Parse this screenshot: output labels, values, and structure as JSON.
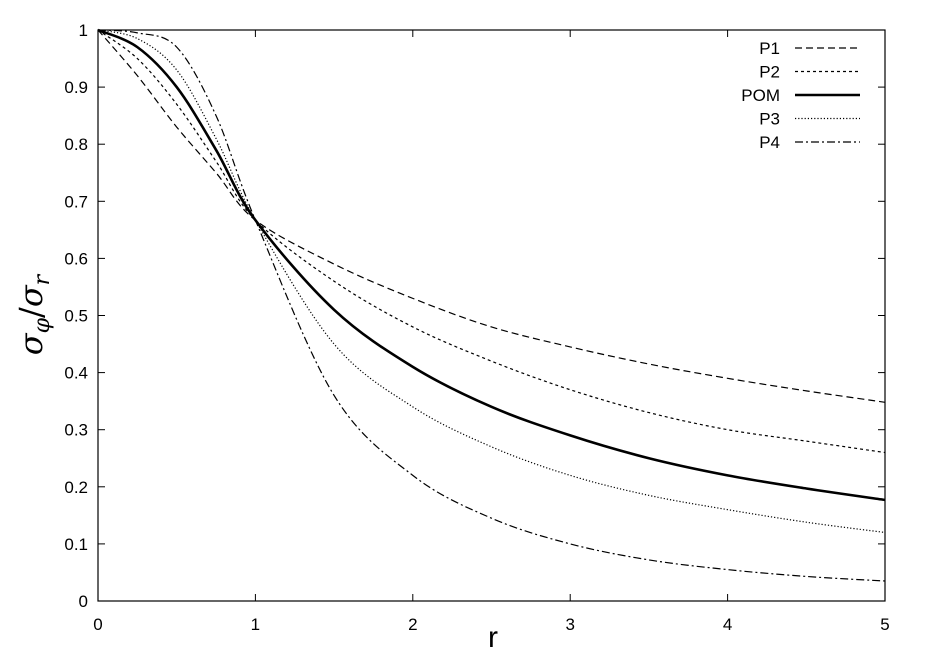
{
  "chart_data": {
    "type": "line",
    "xlabel": "r",
    "ylabel_main": "σ",
    "ylabel_sub1": "φ",
    "ylabel_slash": "/",
    "ylabel_sub2": "r",
    "xlim": [
      0,
      5
    ],
    "ylim": [
      0,
      1
    ],
    "x_ticks": [
      0,
      1,
      2,
      3,
      4,
      5
    ],
    "y_ticks": [
      0,
      0.1,
      0.2,
      0.3,
      0.4,
      0.5,
      0.6,
      0.7,
      0.8,
      0.9,
      1
    ],
    "grid": false,
    "legend_position": "top-right",
    "x": [
      0,
      0.25,
      0.5,
      0.75,
      1,
      1.5,
      2,
      2.5,
      3,
      3.5,
      4,
      4.5,
      5
    ],
    "series": [
      {
        "name": "P1",
        "dash": "dashed-long",
        "values": [
          1.0,
          0.92,
          0.83,
          0.75,
          0.667,
          0.59,
          0.53,
          0.48,
          0.445,
          0.415,
          0.39,
          0.368,
          0.348
        ]
      },
      {
        "name": "P2",
        "dash": "dashed-short",
        "values": [
          1.0,
          0.95,
          0.87,
          0.77,
          0.667,
          0.56,
          0.48,
          0.42,
          0.37,
          0.33,
          0.3,
          0.28,
          0.26
        ]
      },
      {
        "name": "POM",
        "dash": "solid",
        "values": [
          1.0,
          0.97,
          0.9,
          0.79,
          0.667,
          0.51,
          0.41,
          0.34,
          0.29,
          0.25,
          0.22,
          0.197,
          0.177
        ]
      },
      {
        "name": "P3",
        "dash": "dotted",
        "values": [
          1.0,
          0.985,
          0.93,
          0.81,
          0.667,
          0.45,
          0.34,
          0.27,
          0.22,
          0.185,
          0.16,
          0.138,
          0.12
        ]
      },
      {
        "name": "P4",
        "dash": "dash-dot",
        "values": [
          1.0,
          0.995,
          0.97,
          0.85,
          0.667,
          0.36,
          0.22,
          0.145,
          0.1,
          0.072,
          0.055,
          0.043,
          0.035
        ]
      }
    ]
  }
}
